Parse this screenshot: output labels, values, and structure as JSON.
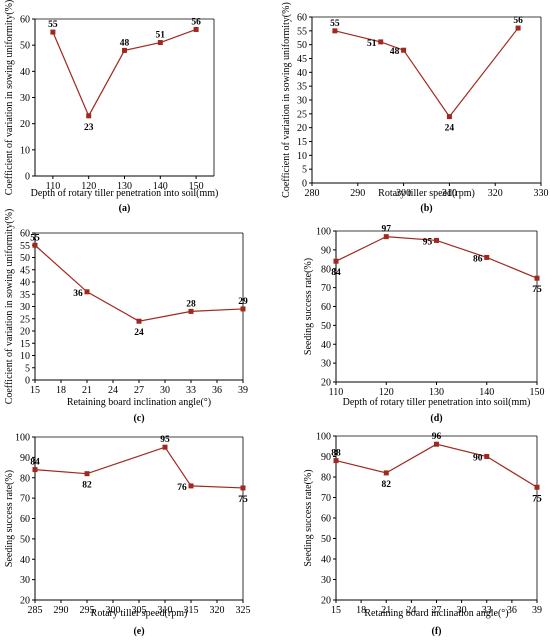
{
  "colors": {
    "line": "#a0281e",
    "marker": "#a0281e",
    "axis": "#000000",
    "text": "#000000"
  },
  "chart_data": [
    {
      "panel": "(a)",
      "type": "line",
      "x": [
        110,
        120,
        130,
        140,
        150
      ],
      "values": [
        55,
        23,
        48,
        51,
        56
      ],
      "data_labels": [
        "55",
        "23",
        "48",
        "51",
        "56"
      ],
      "xlabel": "Depth of rotary tiller penetration into soil(mm)",
      "ylabel": "Coefficient of variation in sowing uniformity(%)",
      "xlim": [
        105,
        155
      ],
      "ylim": [
        0,
        60
      ],
      "xticks": [
        110,
        120,
        130,
        140,
        150
      ],
      "yticks": [
        0,
        10,
        20,
        30,
        40,
        50,
        60
      ],
      "grid": false
    },
    {
      "panel": "(b)",
      "type": "line",
      "x": [
        285,
        295,
        300,
        310,
        325
      ],
      "values": [
        55,
        51,
        48,
        24,
        56
      ],
      "data_labels": [
        "55",
        "51",
        "48",
        "24",
        "56"
      ],
      "xlabel": "Rotary tiller speed(rpm)",
      "ylabel": "Coefficient of variation in sowing uniformity(%)",
      "xlim": [
        280,
        330
      ],
      "ylim": [
        0,
        60
      ],
      "xticks": [
        280,
        290,
        300,
        310,
        320,
        330
      ],
      "yticks": [
        0,
        5,
        10,
        15,
        20,
        25,
        30,
        35,
        40,
        45,
        50,
        55,
        60
      ],
      "grid": false
    },
    {
      "panel": "(c)",
      "type": "line",
      "x": [
        15,
        21,
        27,
        33,
        39
      ],
      "values": [
        55,
        36,
        24,
        28,
        29
      ],
      "data_labels": [
        "55",
        "36",
        "24",
        "28",
        "29"
      ],
      "xlabel": "Retaining board inclination angle(°)",
      "ylabel": "Coefficient of variation in sowing uniformity(%)",
      "xlim": [
        15,
        39
      ],
      "ylim": [
        0,
        60
      ],
      "xticks": [
        15,
        18,
        21,
        24,
        27,
        30,
        33,
        36,
        39
      ],
      "yticks": [
        0,
        5,
        10,
        15,
        20,
        25,
        30,
        35,
        40,
        45,
        50,
        55,
        60
      ],
      "grid": false
    },
    {
      "panel": "(d)",
      "type": "line",
      "x": [
        110,
        120,
        130,
        140,
        150
      ],
      "values": [
        84,
        97,
        95,
        86,
        75
      ],
      "data_labels": [
        "84",
        "97",
        "95",
        "86",
        "75"
      ],
      "xlabel": "Depth of rotary tiller penetration into soil(mm)",
      "ylabel": "Seeding success rate(%)",
      "xlim": [
        110,
        150
      ],
      "ylim": [
        20,
        100
      ],
      "xticks": [
        110,
        120,
        130,
        140,
        150
      ],
      "yticks": [
        20,
        30,
        40,
        50,
        60,
        70,
        80,
        90,
        100
      ],
      "grid": false
    },
    {
      "panel": "(e)",
      "type": "line",
      "x": [
        285,
        295,
        310,
        315,
        325
      ],
      "values": [
        84,
        82,
        95,
        76,
        75
      ],
      "data_labels": [
        "84",
        "82",
        "95",
        "76",
        "75"
      ],
      "xlabel": "Rotary tiller speed(rpm)",
      "ylabel": "Seeding success rate(%)",
      "xlim": [
        285,
        325
      ],
      "ylim": [
        20,
        100
      ],
      "xticks": [
        285,
        290,
        295,
        300,
        305,
        310,
        315,
        320,
        325
      ],
      "yticks": [
        20,
        30,
        40,
        50,
        60,
        70,
        80,
        90,
        100
      ],
      "grid": false
    },
    {
      "panel": "(f)",
      "type": "line",
      "x": [
        15,
        21,
        27,
        33,
        39
      ],
      "values": [
        88,
        82,
        96,
        90,
        75
      ],
      "data_labels": [
        "88",
        "82",
        "96",
        "90",
        "75"
      ],
      "xlabel": "Retaining board inclination angle(°)",
      "ylabel": "Seeding success rate(%)",
      "xlim": [
        15,
        39
      ],
      "ylim": [
        20,
        100
      ],
      "xticks": [
        15,
        18,
        21,
        24,
        27,
        30,
        33,
        36,
        39
      ],
      "yticks": [
        20,
        30,
        40,
        50,
        60,
        70,
        80,
        90,
        100
      ],
      "grid": false
    }
  ]
}
